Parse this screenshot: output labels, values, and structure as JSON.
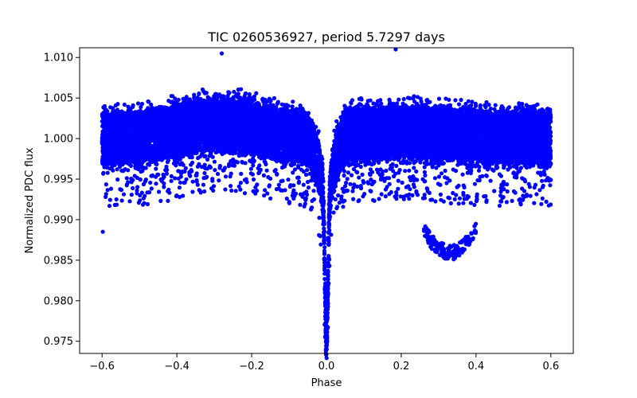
{
  "chart_data": {
    "type": "scatter",
    "title": "TIC 0260536927, period 5.7297 days",
    "xlabel": "Phase",
    "ylabel": "Normalized PDC flux",
    "xlim": [
      -0.66,
      0.66
    ],
    "ylim": [
      0.9735,
      1.0112
    ],
    "grid": false,
    "x_ticks": [
      -0.6,
      -0.4,
      -0.2,
      0.0,
      0.2,
      0.4,
      0.6
    ],
    "x_tick_labels": [
      "−0.6",
      "−0.4",
      "−0.2",
      "0.0",
      "0.2",
      "0.4",
      "0.6"
    ],
    "y_ticks": [
      0.975,
      0.98,
      0.985,
      0.99,
      0.995,
      1.0,
      1.005,
      1.01
    ],
    "y_tick_labels": [
      "0.975",
      "0.980",
      "0.985",
      "0.990",
      "0.995",
      "1.000",
      "1.005",
      "1.010"
    ],
    "marker_color": "#0000ff",
    "series": [
      {
        "name": "PDC flux",
        "description_points": {
          "phase_range": [
            -0.6,
            0.6
          ],
          "baseline_flux": 1.0,
          "scatter_halfwidth": 0.0045,
          "primary_eclipse": {
            "phase": 0.0,
            "min_flux": 0.975,
            "core_halfwidth": 0.006
          },
          "secondary_dip": {
            "phase": 0.33,
            "min_flux": 0.985
          },
          "max_flux": 1.011
        }
      }
    ],
    "highlight_points": [
      {
        "x": 0.185,
        "y": 1.011
      },
      {
        "x": 0.002,
        "y": 0.975
      },
      {
        "x": -0.598,
        "y": 0.9885
      },
      {
        "x": 0.34,
        "y": 0.9851
      },
      {
        "x": -0.28,
        "y": 1.0105
      }
    ]
  }
}
